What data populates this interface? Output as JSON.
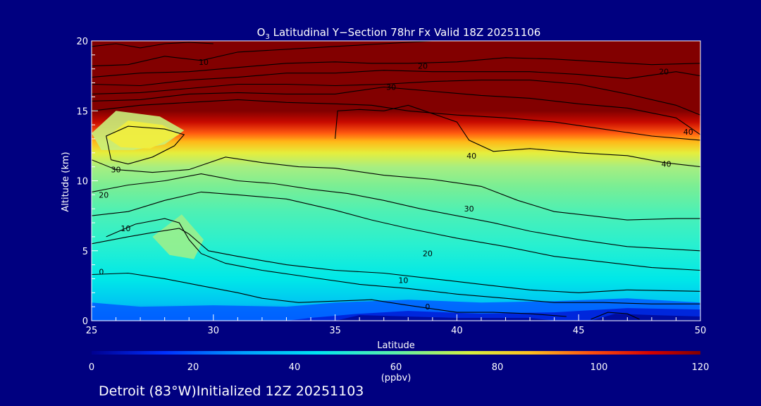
{
  "chart_data": {
    "type": "heatmap",
    "title": {
      "species": "O",
      "species_sub": "3",
      "text": " Latitudinal Y−Section 78hr  Fx Valid 18Z 20251106"
    },
    "xlabel": "Latitude",
    "ylabel": "Altitude (km)",
    "xlim": [
      25,
      50
    ],
    "ylim": [
      0,
      20
    ],
    "x_ticks": [
      25,
      30,
      35,
      40,
      45,
      50
    ],
    "y_ticks": [
      0,
      5,
      10,
      15,
      20
    ],
    "colorbar": {
      "range": [
        0,
        120
      ],
      "ticks": [
        0,
        20,
        40,
        60,
        80,
        100,
        120
      ],
      "units": "(ppbv)"
    },
    "contour_levels": [
      0,
      10,
      20,
      30,
      40
    ],
    "contour_labels": [
      {
        "text": "10",
        "lat": 29.6,
        "alt": 18.5
      },
      {
        "text": "20",
        "lat": 38.6,
        "alt": 18.2
      },
      {
        "text": "20",
        "lat": 48.5,
        "alt": 17.8
      },
      {
        "text": "30",
        "lat": 37.3,
        "alt": 16.7
      },
      {
        "text": "40",
        "lat": 49.5,
        "alt": 13.5
      },
      {
        "text": "40",
        "lat": 40.6,
        "alt": 11.8
      },
      {
        "text": "40",
        "lat": 48.6,
        "alt": 11.2
      },
      {
        "text": "30",
        "lat": 26.0,
        "alt": 10.8
      },
      {
        "text": "20",
        "lat": 25.5,
        "alt": 9.0
      },
      {
        "text": "10",
        "lat": 26.4,
        "alt": 6.6
      },
      {
        "text": "30",
        "lat": 40.5,
        "alt": 8.0
      },
      {
        "text": "20",
        "lat": 38.8,
        "alt": 4.8
      },
      {
        "text": "10",
        "lat": 37.8,
        "alt": 2.9
      },
      {
        "text": "0",
        "lat": 25.4,
        "alt": 3.5
      },
      {
        "text": "0",
        "lat": 38.8,
        "alt": 1.0
      }
    ],
    "contour_lines": [
      [
        [
          25,
          19.6
        ],
        [
          26,
          19.8
        ],
        [
          27,
          19.5
        ],
        [
          28,
          19.8
        ],
        [
          29,
          19.9
        ],
        [
          30,
          19.8
        ]
      ],
      [
        [
          25,
          18.2
        ],
        [
          26.5,
          18.3
        ],
        [
          28,
          18.9
        ],
        [
          29.5,
          18.6
        ],
        [
          31,
          19.2
        ],
        [
          33,
          19.4
        ],
        [
          35,
          19.6
        ],
        [
          37,
          19.8
        ],
        [
          39,
          20
        ],
        [
          41,
          20
        ]
      ],
      [
        [
          25,
          17.4
        ],
        [
          27,
          17.7
        ],
        [
          29,
          17.8
        ],
        [
          31,
          18.1
        ],
        [
          33,
          18.4
        ],
        [
          35,
          18.5
        ],
        [
          36.5,
          18.4
        ],
        [
          38,
          18.4
        ],
        [
          40,
          18.5
        ],
        [
          42,
          18.8
        ],
        [
          44,
          18.7
        ],
        [
          46,
          18.5
        ],
        [
          48,
          18.3
        ],
        [
          50,
          18.4
        ]
      ],
      [
        [
          25,
          16.9
        ],
        [
          27,
          16.8
        ],
        [
          29,
          17.2
        ],
        [
          31,
          17.4
        ],
        [
          33,
          17.7
        ],
        [
          35,
          17.7
        ],
        [
          37,
          17.9
        ],
        [
          39,
          17.8
        ],
        [
          41,
          17.8
        ],
        [
          43,
          17.8
        ],
        [
          45,
          17.6
        ],
        [
          47,
          17.3
        ],
        [
          49,
          17.8
        ],
        [
          50,
          17.5
        ]
      ],
      [
        [
          25,
          16.2
        ],
        [
          27,
          16.3
        ],
        [
          29,
          16.6
        ],
        [
          31,
          16.9
        ],
        [
          33,
          16.9
        ],
        [
          35,
          16.8
        ],
        [
          37,
          16.9
        ],
        [
          39,
          17.1
        ],
        [
          41,
          17.2
        ],
        [
          43,
          17.2
        ],
        [
          45,
          16.9
        ],
        [
          47,
          16.2
        ],
        [
          49,
          15.4
        ],
        [
          50,
          14.7
        ]
      ],
      [
        [
          25,
          15.7
        ],
        [
          27,
          15.8
        ],
        [
          29,
          16.2
        ],
        [
          31,
          16.3
        ],
        [
          33,
          16.2
        ],
        [
          35,
          16.2
        ],
        [
          37,
          16.7
        ],
        [
          39,
          16.4
        ],
        [
          41,
          16.1
        ],
        [
          43,
          15.9
        ],
        [
          45,
          15.5
        ],
        [
          47,
          15.2
        ],
        [
          49,
          14.5
        ],
        [
          50,
          13.3
        ]
      ],
      [
        [
          25,
          15.0
        ],
        [
          27,
          15.4
        ],
        [
          29,
          15.6
        ],
        [
          31,
          15.8
        ],
        [
          33,
          15.6
        ],
        [
          35,
          15.5
        ],
        [
          36.5,
          15.4
        ],
        [
          38,
          15.0
        ],
        [
          40,
          14.7
        ],
        [
          42,
          14.5
        ],
        [
          44,
          14.2
        ],
        [
          46,
          13.7
        ],
        [
          48,
          13.2
        ],
        [
          50,
          12.9
        ]
      ],
      [
        [
          35.0,
          13.0
        ],
        [
          35.1,
          15.0
        ],
        [
          36,
          15.1
        ],
        [
          37,
          15.0
        ],
        [
          38,
          15.4
        ],
        [
          39,
          14.8
        ],
        [
          40,
          14.2
        ],
        [
          40.5,
          12.9
        ],
        [
          41.5,
          12.1
        ],
        [
          43,
          12.3
        ],
        [
          45,
          12.0
        ],
        [
          47,
          11.8
        ],
        [
          48.5,
          11.3
        ],
        [
          50,
          11.0
        ]
      ],
      [
        [
          25.8,
          11.5
        ],
        [
          25.6,
          13.2
        ],
        [
          26.5,
          13.9
        ],
        [
          28,
          13.7
        ],
        [
          28.8,
          13.3
        ],
        [
          28.4,
          12.5
        ],
        [
          27.5,
          11.7
        ],
        [
          26.5,
          11.2
        ],
        [
          25.8,
          11.5
        ]
      ],
      [
        [
          25,
          11.5
        ],
        [
          26,
          10.8
        ],
        [
          27.5,
          10.6
        ],
        [
          29,
          10.8
        ],
        [
          30.5,
          11.7
        ],
        [
          32,
          11.3
        ],
        [
          33.5,
          11.0
        ],
        [
          35,
          10.9
        ],
        [
          37,
          10.4
        ],
        [
          39,
          10.1
        ],
        [
          41,
          9.6
        ],
        [
          42.5,
          8.6
        ],
        [
          44,
          7.8
        ],
        [
          45.5,
          7.5
        ],
        [
          47,
          7.2
        ],
        [
          49,
          7.3
        ],
        [
          50,
          7.3
        ]
      ],
      [
        [
          25,
          9.2
        ],
        [
          26.5,
          9.7
        ],
        [
          28,
          10.0
        ],
        [
          29.5,
          10.5
        ],
        [
          31,
          10.0
        ],
        [
          32.5,
          9.8
        ],
        [
          34,
          9.4
        ],
        [
          35.5,
          9.1
        ],
        [
          37,
          8.6
        ],
        [
          38.5,
          8.0
        ],
        [
          40,
          7.5
        ],
        [
          41.5,
          7.0
        ],
        [
          43,
          6.4
        ],
        [
          45,
          5.8
        ],
        [
          47,
          5.3
        ],
        [
          49,
          5.1
        ],
        [
          50,
          5.0
        ]
      ],
      [
        [
          25,
          7.5
        ],
        [
          26.5,
          7.8
        ],
        [
          28,
          8.6
        ],
        [
          29.5,
          9.2
        ],
        [
          31,
          9.0
        ],
        [
          33,
          8.7
        ],
        [
          35,
          7.9
        ],
        [
          36.5,
          7.2
        ],
        [
          38,
          6.6
        ],
        [
          40,
          5.9
        ],
        [
          42,
          5.3
        ],
        [
          44,
          4.6
        ],
        [
          46,
          4.2
        ],
        [
          48,
          3.8
        ],
        [
          50,
          3.6
        ]
      ],
      [
        [
          25.6,
          6.0
        ],
        [
          26.8,
          6.9
        ],
        [
          28,
          7.3
        ],
        [
          28.6,
          7.0
        ],
        [
          29.0,
          5.8
        ],
        [
          29.5,
          4.8
        ],
        [
          30.5,
          4.1
        ],
        [
          32,
          3.6
        ],
        [
          34,
          3.1
        ],
        [
          36,
          2.6
        ],
        [
          38,
          2.3
        ],
        [
          40,
          1.9
        ],
        [
          42,
          1.6
        ],
        [
          44,
          1.3
        ],
        [
          46,
          1.3
        ],
        [
          48,
          1.2
        ],
        [
          50,
          1.2
        ]
      ],
      [
        [
          25,
          5.5
        ],
        [
          26.5,
          6.0
        ],
        [
          27.5,
          6.3
        ],
        [
          28.6,
          6.6
        ],
        [
          29,
          6.2
        ],
        [
          29.8,
          5.0
        ],
        [
          31,
          4.6
        ],
        [
          33,
          4.0
        ],
        [
          35,
          3.6
        ],
        [
          37,
          3.4
        ],
        [
          39,
          3.0
        ],
        [
          41,
          2.6
        ],
        [
          43,
          2.2
        ],
        [
          45,
          2.0
        ],
        [
          47,
          2.2
        ],
        [
          50,
          2.1
        ]
      ],
      [
        [
          25,
          3.3
        ],
        [
          26.5,
          3.4
        ],
        [
          28,
          3.0
        ],
        [
          29.5,
          2.5
        ],
        [
          31,
          2.0
        ],
        [
          32,
          1.6
        ],
        [
          33.5,
          1.3
        ],
        [
          35,
          1.4
        ],
        [
          36.5,
          1.5
        ],
        [
          38,
          1.1
        ],
        [
          40,
          0.6
        ],
        [
          41.5,
          0.6
        ],
        [
          43,
          0.5
        ],
        [
          44.5,
          0.3
        ]
      ],
      [
        [
          45.5,
          0.1
        ],
        [
          46.2,
          0.6
        ],
        [
          47,
          0.5
        ],
        [
          47.5,
          0.1
        ]
      ]
    ],
    "field_layers": [
      {
        "value": 6,
        "color": "#0060ff",
        "poly": [
          [
            25,
            0
          ],
          [
            50,
            0
          ],
          [
            50,
            1.3
          ],
          [
            47,
            1.6
          ],
          [
            44,
            1.4
          ],
          [
            41,
            1.3
          ],
          [
            38,
            1.5
          ],
          [
            35,
            1.3
          ],
          [
            33,
            1.0
          ],
          [
            30,
            1.1
          ],
          [
            27,
            1.0
          ],
          [
            25,
            1.3
          ]
        ]
      },
      {
        "value": 2,
        "color": "#0020d8",
        "poly": [
          [
            33,
            0
          ],
          [
            50,
            0
          ],
          [
            50,
            0.8
          ],
          [
            47,
            0.9
          ],
          [
            44,
            0.6
          ],
          [
            41,
            0.5
          ],
          [
            38,
            0.7
          ],
          [
            36,
            0.5
          ],
          [
            34,
            0.2
          ]
        ]
      },
      {
        "value": 0,
        "color": "#000a9a",
        "poly": [
          [
            35,
            0
          ],
          [
            44,
            0
          ],
          [
            43,
            0.2
          ],
          [
            40,
            0.2
          ],
          [
            38,
            0.3
          ],
          [
            36,
            0.4
          ]
        ]
      },
      {
        "value": 0.5,
        "color": "#000a9a",
        "poly": [
          [
            45.5,
            0
          ],
          [
            50,
            0
          ],
          [
            50,
            0.3
          ],
          [
            48,
            0.4
          ],
          [
            46.5,
            0.5
          ]
        ]
      },
      {
        "value": 68,
        "color": "#9af08c",
        "poly": [
          [
            27.5,
            6.0
          ],
          [
            28.7,
            7.6
          ],
          [
            29.6,
            5.8
          ],
          [
            29.2,
            4.4
          ],
          [
            28.2,
            4.7
          ]
        ]
      },
      {
        "value": 72,
        "color": "#c8f07a",
        "poly": [
          [
            25,
            13.4
          ],
          [
            26,
            15.0
          ],
          [
            27.8,
            14.6
          ],
          [
            28.8,
            13.6
          ],
          [
            28,
            12.6
          ],
          [
            26.7,
            12.2
          ],
          [
            25.4,
            12.2
          ]
        ]
      },
      {
        "value": 78,
        "color": "#f2ee3c",
        "poly": [
          [
            25.6,
            13.1
          ],
          [
            26.5,
            14.3
          ],
          [
            27.9,
            14.0
          ],
          [
            28.6,
            13.3
          ],
          [
            27.4,
            12.3
          ],
          [
            26.2,
            12.4
          ]
        ]
      }
    ]
  },
  "footer": {
    "location": "Detroit (83°W)Initialized 12Z 20251103"
  }
}
